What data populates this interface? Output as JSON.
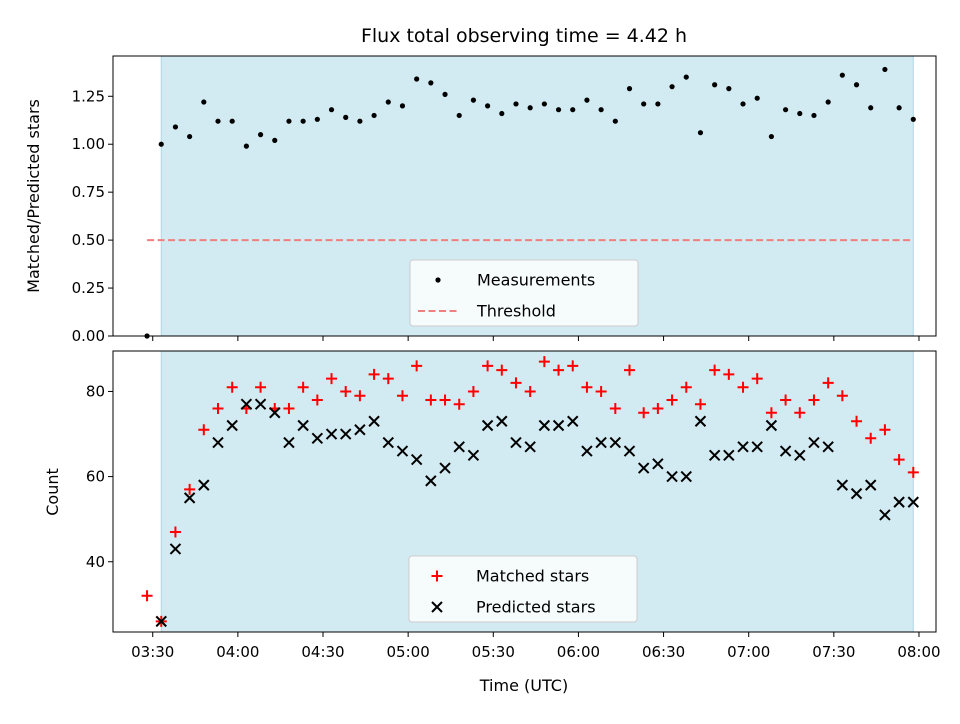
{
  "title": "Flux total observing time = 4.42 h",
  "colors": {
    "shade": "#add8e6",
    "threshold": "#f08080",
    "matched": "#ff0000",
    "predicted": "#000000",
    "measurement": "#000000"
  },
  "chart_data": [
    {
      "type": "scatter",
      "ylabel": "Matched/Predicted stars",
      "ylim": [
        0.0,
        1.46
      ],
      "yticks": [
        0.0,
        0.25,
        0.5,
        0.75,
        1.0,
        1.25
      ],
      "ytick_labels": [
        "0.00",
        "0.25",
        "0.50",
        "0.75",
        "1.00",
        "1.25"
      ],
      "shaded_range": [
        "03:33",
        "07:58"
      ],
      "threshold": {
        "value": 0.5,
        "x_range": [
          "03:28",
          "07:58"
        ]
      },
      "legend": {
        "position": "lower-center",
        "entries": [
          "Measurements",
          "Threshold"
        ]
      },
      "series": [
        {
          "name": "Measurements",
          "points": [
            [
              "03:28",
              0.0
            ],
            [
              "03:33",
              1.0
            ],
            [
              "03:38",
              1.09
            ],
            [
              "03:43",
              1.04
            ],
            [
              "03:48",
              1.22
            ],
            [
              "03:53",
              1.12
            ],
            [
              "03:58",
              1.12
            ],
            [
              "04:03",
              0.99
            ],
            [
              "04:08",
              1.05
            ],
            [
              "04:13",
              1.02
            ],
            [
              "04:18",
              1.12
            ],
            [
              "04:23",
              1.12
            ],
            [
              "04:28",
              1.13
            ],
            [
              "04:33",
              1.18
            ],
            [
              "04:38",
              1.14
            ],
            [
              "04:43",
              1.12
            ],
            [
              "04:48",
              1.15
            ],
            [
              "04:53",
              1.22
            ],
            [
              "04:58",
              1.2
            ],
            [
              "05:03",
              1.34
            ],
            [
              "05:08",
              1.32
            ],
            [
              "05:13",
              1.26
            ],
            [
              "05:18",
              1.15
            ],
            [
              "05:23",
              1.23
            ],
            [
              "05:28",
              1.2
            ],
            [
              "05:33",
              1.16
            ],
            [
              "05:38",
              1.21
            ],
            [
              "05:43",
              1.19
            ],
            [
              "05:48",
              1.21
            ],
            [
              "05:53",
              1.18
            ],
            [
              "05:58",
              1.18
            ],
            [
              "06:03",
              1.23
            ],
            [
              "06:08",
              1.18
            ],
            [
              "06:13",
              1.12
            ],
            [
              "06:18",
              1.29
            ],
            [
              "06:23",
              1.21
            ],
            [
              "06:28",
              1.21
            ],
            [
              "06:33",
              1.3
            ],
            [
              "06:38",
              1.35
            ],
            [
              "06:43",
              1.06
            ],
            [
              "06:48",
              1.31
            ],
            [
              "06:53",
              1.29
            ],
            [
              "06:58",
              1.21
            ],
            [
              "07:03",
              1.24
            ],
            [
              "07:08",
              1.04
            ],
            [
              "07:13",
              1.18
            ],
            [
              "07:18",
              1.16
            ],
            [
              "07:23",
              1.15
            ],
            [
              "07:28",
              1.22
            ],
            [
              "07:33",
              1.36
            ],
            [
              "07:38",
              1.31
            ],
            [
              "07:43",
              1.19
            ],
            [
              "07:48",
              1.39
            ],
            [
              "07:53",
              1.19
            ],
            [
              "07:58",
              1.13
            ]
          ]
        }
      ]
    },
    {
      "type": "scatter",
      "xlabel": "Time (UTC)",
      "ylabel": "Count",
      "ylim": [
        23.5,
        89.5
      ],
      "yticks": [
        40,
        60,
        80
      ],
      "ytick_labels": [
        "40",
        "60",
        "80"
      ],
      "xlim": [
        "03:16",
        "08:06"
      ],
      "xticks": [
        "03:30",
        "04:00",
        "04:30",
        "05:00",
        "05:30",
        "06:00",
        "06:30",
        "07:00",
        "07:30",
        "08:00"
      ],
      "shaded_range": [
        "03:33",
        "07:58"
      ],
      "legend": {
        "position": "lower-center",
        "entries": [
          "Matched stars",
          "Predicted stars"
        ]
      },
      "series": [
        {
          "name": "Matched stars",
          "points": [
            [
              "03:28",
              32
            ],
            [
              "03:33",
              26
            ],
            [
              "03:38",
              47
            ],
            [
              "03:43",
              57
            ],
            [
              "03:48",
              71
            ],
            [
              "03:53",
              76
            ],
            [
              "03:58",
              81
            ],
            [
              "04:03",
              76
            ],
            [
              "04:08",
              81
            ],
            [
              "04:13",
              76
            ],
            [
              "04:18",
              76
            ],
            [
              "04:23",
              81
            ],
            [
              "04:28",
              78
            ],
            [
              "04:33",
              83
            ],
            [
              "04:38",
              80
            ],
            [
              "04:43",
              79
            ],
            [
              "04:48",
              84
            ],
            [
              "04:53",
              83
            ],
            [
              "04:58",
              79
            ],
            [
              "05:03",
              86
            ],
            [
              "05:08",
              78
            ],
            [
              "05:13",
              78
            ],
            [
              "05:18",
              77
            ],
            [
              "05:23",
              80
            ],
            [
              "05:28",
              86
            ],
            [
              "05:33",
              85
            ],
            [
              "05:38",
              82
            ],
            [
              "05:43",
              80
            ],
            [
              "05:48",
              87
            ],
            [
              "05:53",
              85
            ],
            [
              "05:58",
              86
            ],
            [
              "06:03",
              81
            ],
            [
              "06:08",
              80
            ],
            [
              "06:13",
              76
            ],
            [
              "06:18",
              85
            ],
            [
              "06:23",
              75
            ],
            [
              "06:28",
              76
            ],
            [
              "06:33",
              78
            ],
            [
              "06:38",
              81
            ],
            [
              "06:43",
              77
            ],
            [
              "06:48",
              85
            ],
            [
              "06:53",
              84
            ],
            [
              "06:58",
              81
            ],
            [
              "07:03",
              83
            ],
            [
              "07:08",
              75
            ],
            [
              "07:13",
              78
            ],
            [
              "07:18",
              75
            ],
            [
              "07:23",
              78
            ],
            [
              "07:28",
              82
            ],
            [
              "07:33",
              79
            ],
            [
              "07:38",
              73
            ],
            [
              "07:43",
              69
            ],
            [
              "07:48",
              71
            ],
            [
              "07:53",
              64
            ],
            [
              "07:58",
              61
            ]
          ]
        },
        {
          "name": "Predicted stars",
          "points": [
            [
              "03:33",
              26
            ],
            [
              "03:38",
              43
            ],
            [
              "03:43",
              55
            ],
            [
              "03:48",
              58
            ],
            [
              "03:53",
              68
            ],
            [
              "03:58",
              72
            ],
            [
              "04:03",
              77
            ],
            [
              "04:08",
              77
            ],
            [
              "04:13",
              75
            ],
            [
              "04:18",
              68
            ],
            [
              "04:23",
              72
            ],
            [
              "04:28",
              69
            ],
            [
              "04:33",
              70
            ],
            [
              "04:38",
              70
            ],
            [
              "04:43",
              71
            ],
            [
              "04:48",
              73
            ],
            [
              "04:53",
              68
            ],
            [
              "04:58",
              66
            ],
            [
              "05:03",
              64
            ],
            [
              "05:08",
              59
            ],
            [
              "05:13",
              62
            ],
            [
              "05:18",
              67
            ],
            [
              "05:23",
              65
            ],
            [
              "05:28",
              72
            ],
            [
              "05:33",
              73
            ],
            [
              "05:38",
              68
            ],
            [
              "05:43",
              67
            ],
            [
              "05:48",
              72
            ],
            [
              "05:53",
              72
            ],
            [
              "05:58",
              73
            ],
            [
              "06:03",
              66
            ],
            [
              "06:08",
              68
            ],
            [
              "06:13",
              68
            ],
            [
              "06:18",
              66
            ],
            [
              "06:23",
              62
            ],
            [
              "06:28",
              63
            ],
            [
              "06:33",
              60
            ],
            [
              "06:38",
              60
            ],
            [
              "06:43",
              73
            ],
            [
              "06:48",
              65
            ],
            [
              "06:53",
              65
            ],
            [
              "06:58",
              67
            ],
            [
              "07:03",
              67
            ],
            [
              "07:08",
              72
            ],
            [
              "07:13",
              66
            ],
            [
              "07:18",
              65
            ],
            [
              "07:23",
              68
            ],
            [
              "07:28",
              67
            ],
            [
              "07:33",
              58
            ],
            [
              "07:38",
              56
            ],
            [
              "07:43",
              58
            ],
            [
              "07:48",
              51
            ],
            [
              "07:53",
              54
            ],
            [
              "07:58",
              54
            ]
          ]
        }
      ]
    }
  ]
}
